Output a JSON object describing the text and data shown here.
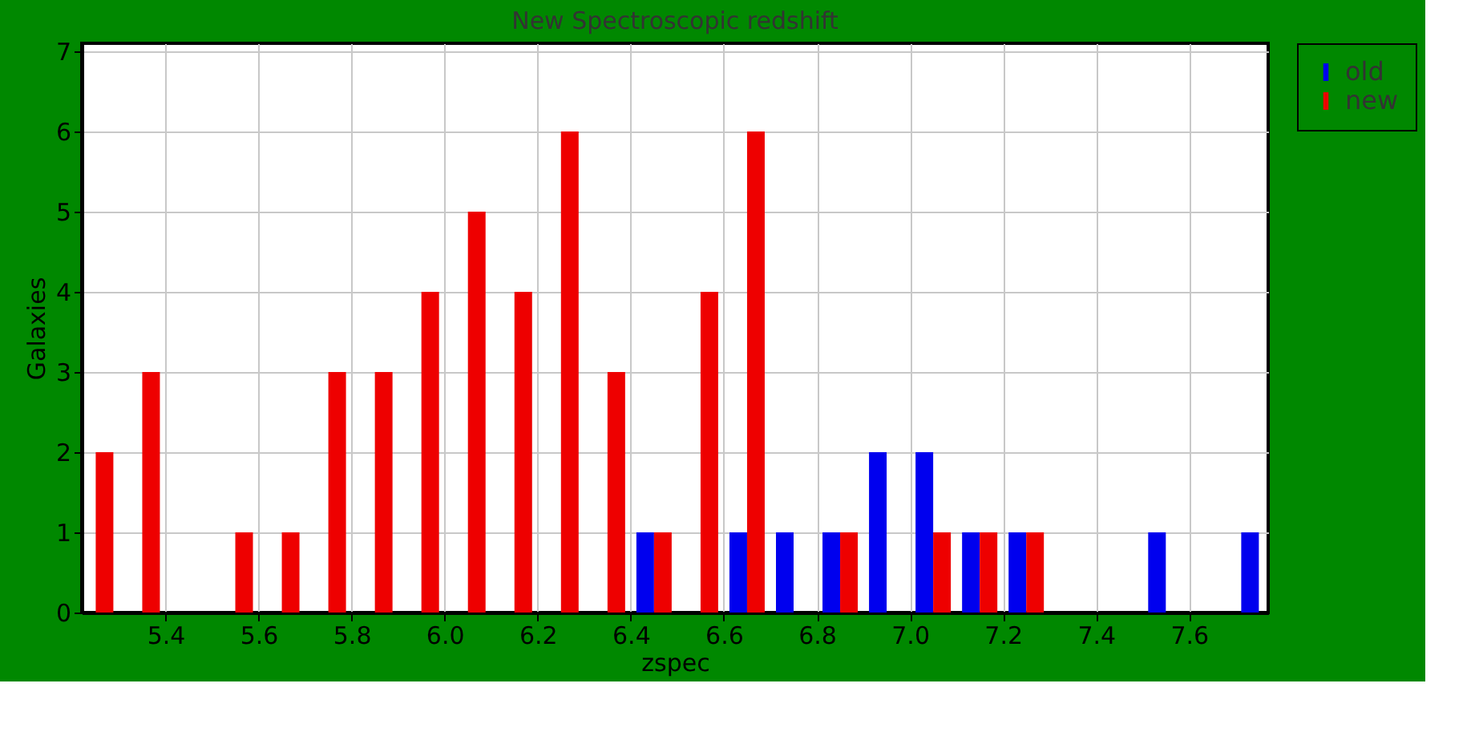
{
  "chart_data": {
    "type": "bar",
    "title": "New Spectroscopic redshift",
    "xlabel": "zspec",
    "ylabel": "Galaxies",
    "series": [
      {
        "name": "old",
        "color": "#0000ee",
        "x": [
          6.45,
          6.65,
          6.75,
          6.85,
          6.95,
          7.05,
          7.15,
          7.25,
          7.55,
          7.75
        ],
        "values": [
          1,
          1,
          1,
          1,
          2,
          2,
          1,
          1,
          1,
          1
        ]
      },
      {
        "name": "new",
        "color": "#ee0000",
        "x": [
          5.25,
          5.35,
          5.55,
          5.65,
          5.75,
          5.85,
          5.95,
          6.05,
          6.15,
          6.25,
          6.35,
          6.45,
          6.55,
          6.65,
          6.85,
          7.05,
          7.15,
          7.25
        ],
        "values": [
          2,
          3,
          1,
          1,
          3,
          3,
          4,
          5,
          4,
          6,
          3,
          1,
          4,
          6,
          1,
          1,
          1,
          1
        ]
      }
    ],
    "xlim": [
      5.22,
      7.77
    ],
    "xticks": [
      5.4,
      5.6,
      5.8,
      {
        "value": 6,
        "label": "6.0"
      },
      6.2,
      6.4,
      6.6,
      6.8,
      {
        "value": 7,
        "label": "7.0"
      },
      7.2,
      7.4,
      7.6
    ],
    "ylim": [
      0,
      7.1
    ],
    "yticks": [
      0,
      1,
      2,
      3,
      4,
      5,
      6,
      7
    ],
    "grid": true,
    "legend": "top right"
  }
}
